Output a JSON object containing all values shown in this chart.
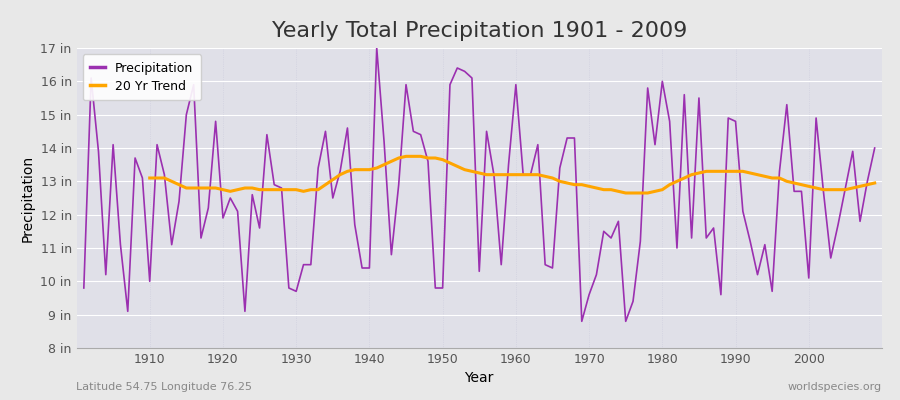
{
  "title": "Yearly Total Precipitation 1901 - 2009",
  "xlabel": "Year",
  "ylabel": "Precipitation",
  "subtitle_left": "Latitude 54.75 Longitude 76.25",
  "subtitle_right": "worldspecies.org",
  "years": [
    1901,
    1902,
    1903,
    1904,
    1905,
    1906,
    1907,
    1908,
    1909,
    1910,
    1911,
    1912,
    1913,
    1914,
    1915,
    1916,
    1917,
    1918,
    1919,
    1920,
    1921,
    1922,
    1923,
    1924,
    1925,
    1926,
    1927,
    1928,
    1929,
    1930,
    1931,
    1932,
    1933,
    1934,
    1935,
    1936,
    1937,
    1938,
    1939,
    1940,
    1941,
    1942,
    1943,
    1944,
    1945,
    1946,
    1947,
    1948,
    1949,
    1950,
    1951,
    1952,
    1953,
    1954,
    1955,
    1956,
    1957,
    1958,
    1959,
    1960,
    1961,
    1962,
    1963,
    1964,
    1965,
    1966,
    1967,
    1968,
    1969,
    1970,
    1971,
    1972,
    1973,
    1974,
    1975,
    1976,
    1977,
    1978,
    1979,
    1980,
    1981,
    1982,
    1983,
    1984,
    1985,
    1986,
    1987,
    1988,
    1989,
    1990,
    1991,
    1992,
    1993,
    1994,
    1995,
    1996,
    1997,
    1998,
    1999,
    2000,
    2001,
    2002,
    2003,
    2004,
    2005,
    2006,
    2007,
    2008,
    2009
  ],
  "precip": [
    9.8,
    16.1,
    13.9,
    10.2,
    14.1,
    11.1,
    9.1,
    13.7,
    13.1,
    10.0,
    14.1,
    13.2,
    11.1,
    12.4,
    15.0,
    15.9,
    11.3,
    12.2,
    14.8,
    11.9,
    12.5,
    12.1,
    9.1,
    12.6,
    11.6,
    14.4,
    12.9,
    12.8,
    9.8,
    9.7,
    10.5,
    10.5,
    13.4,
    14.5,
    12.5,
    13.3,
    14.6,
    11.7,
    10.4,
    10.4,
    17.0,
    14.2,
    10.8,
    12.9,
    15.9,
    14.5,
    14.4,
    13.6,
    9.8,
    9.8,
    15.9,
    16.4,
    16.3,
    16.1,
    10.3,
    14.5,
    13.2,
    10.5,
    13.5,
    15.9,
    13.2,
    13.2,
    14.1,
    10.5,
    10.4,
    13.4,
    14.3,
    14.3,
    8.8,
    9.6,
    10.2,
    11.5,
    11.3,
    11.8,
    8.8,
    9.4,
    11.2,
    15.8,
    14.1,
    16.0,
    14.8,
    11.0,
    15.6,
    11.3,
    15.5,
    11.3,
    11.6,
    9.6,
    14.9,
    14.8,
    12.1,
    11.2,
    10.2,
    11.1,
    9.7,
    13.3,
    15.3,
    12.7,
    12.7,
    10.1,
    14.9,
    12.7,
    10.7,
    11.7,
    12.8,
    13.9,
    11.8,
    13.0,
    14.0
  ],
  "trend_years": [
    1910,
    1911,
    1912,
    1913,
    1914,
    1915,
    1916,
    1917,
    1918,
    1919,
    1920,
    1921,
    1922,
    1923,
    1924,
    1925,
    1926,
    1927,
    1928,
    1929,
    1930,
    1931,
    1932,
    1933,
    1934,
    1935,
    1936,
    1937,
    1938,
    1939,
    1940,
    1941,
    1942,
    1943,
    1944,
    1945,
    1946,
    1947,
    1948,
    1949,
    1950,
    1951,
    1952,
    1953,
    1954,
    1955,
    1956,
    1957,
    1958,
    1959,
    1960,
    1961,
    1962,
    1963,
    1964,
    1965,
    1966,
    1967,
    1968,
    1969,
    1970,
    1971,
    1972,
    1973,
    1974,
    1975,
    1976,
    1977,
    1978,
    1979,
    1980,
    1981,
    1982,
    1983,
    1984,
    1985,
    1986,
    1987,
    1988,
    1989,
    1990,
    1991,
    1992,
    1993,
    1994,
    1995,
    1996,
    1997,
    1998,
    1999,
    2000,
    2001,
    2002,
    2003,
    2004,
    2005,
    2006,
    2007,
    2008,
    2009
  ],
  "trend": [
    13.1,
    13.1,
    13.1,
    13.0,
    12.9,
    12.8,
    12.8,
    12.8,
    12.8,
    12.8,
    12.75,
    12.7,
    12.75,
    12.8,
    12.8,
    12.75,
    12.75,
    12.75,
    12.75,
    12.75,
    12.75,
    12.7,
    12.75,
    12.75,
    12.9,
    13.05,
    13.2,
    13.3,
    13.35,
    13.35,
    13.35,
    13.4,
    13.5,
    13.6,
    13.7,
    13.75,
    13.75,
    13.75,
    13.7,
    13.7,
    13.65,
    13.55,
    13.45,
    13.35,
    13.3,
    13.25,
    13.2,
    13.2,
    13.2,
    13.2,
    13.2,
    13.2,
    13.2,
    13.2,
    13.15,
    13.1,
    13.0,
    12.95,
    12.9,
    12.9,
    12.85,
    12.8,
    12.75,
    12.75,
    12.7,
    12.65,
    12.65,
    12.65,
    12.65,
    12.7,
    12.75,
    12.9,
    13.0,
    13.1,
    13.2,
    13.25,
    13.3,
    13.3,
    13.3,
    13.3,
    13.3,
    13.3,
    13.25,
    13.2,
    13.15,
    13.1,
    13.1,
    13.0,
    12.95,
    12.9,
    12.85,
    12.8,
    12.75,
    12.75,
    12.75,
    12.75,
    12.8,
    12.85,
    12.9,
    12.95
  ],
  "precip_color": "#9B30B0",
  "trend_color": "#FFA500",
  "fig_bg_color": "#e8e8e8",
  "plot_bg_color": "#e0e0e8",
  "grid_color_h": "#ffffff",
  "grid_color_v": "#ccccdd",
  "ylim": [
    8,
    17
  ],
  "yticks": [
    8,
    9,
    10,
    11,
    12,
    13,
    14,
    15,
    16,
    17
  ],
  "ytick_labels": [
    "8 in",
    "9 in",
    "10 in",
    "11 in",
    "12 in",
    "13 in",
    "14 in",
    "15 in",
    "16 in",
    "17 in"
  ],
  "xticks": [
    1910,
    1920,
    1930,
    1940,
    1950,
    1960,
    1970,
    1980,
    1990,
    2000
  ],
  "xlim": [
    1900,
    2010
  ],
  "title_fontsize": 16,
  "axis_label_fontsize": 10,
  "tick_fontsize": 9,
  "annot_fontsize": 8
}
